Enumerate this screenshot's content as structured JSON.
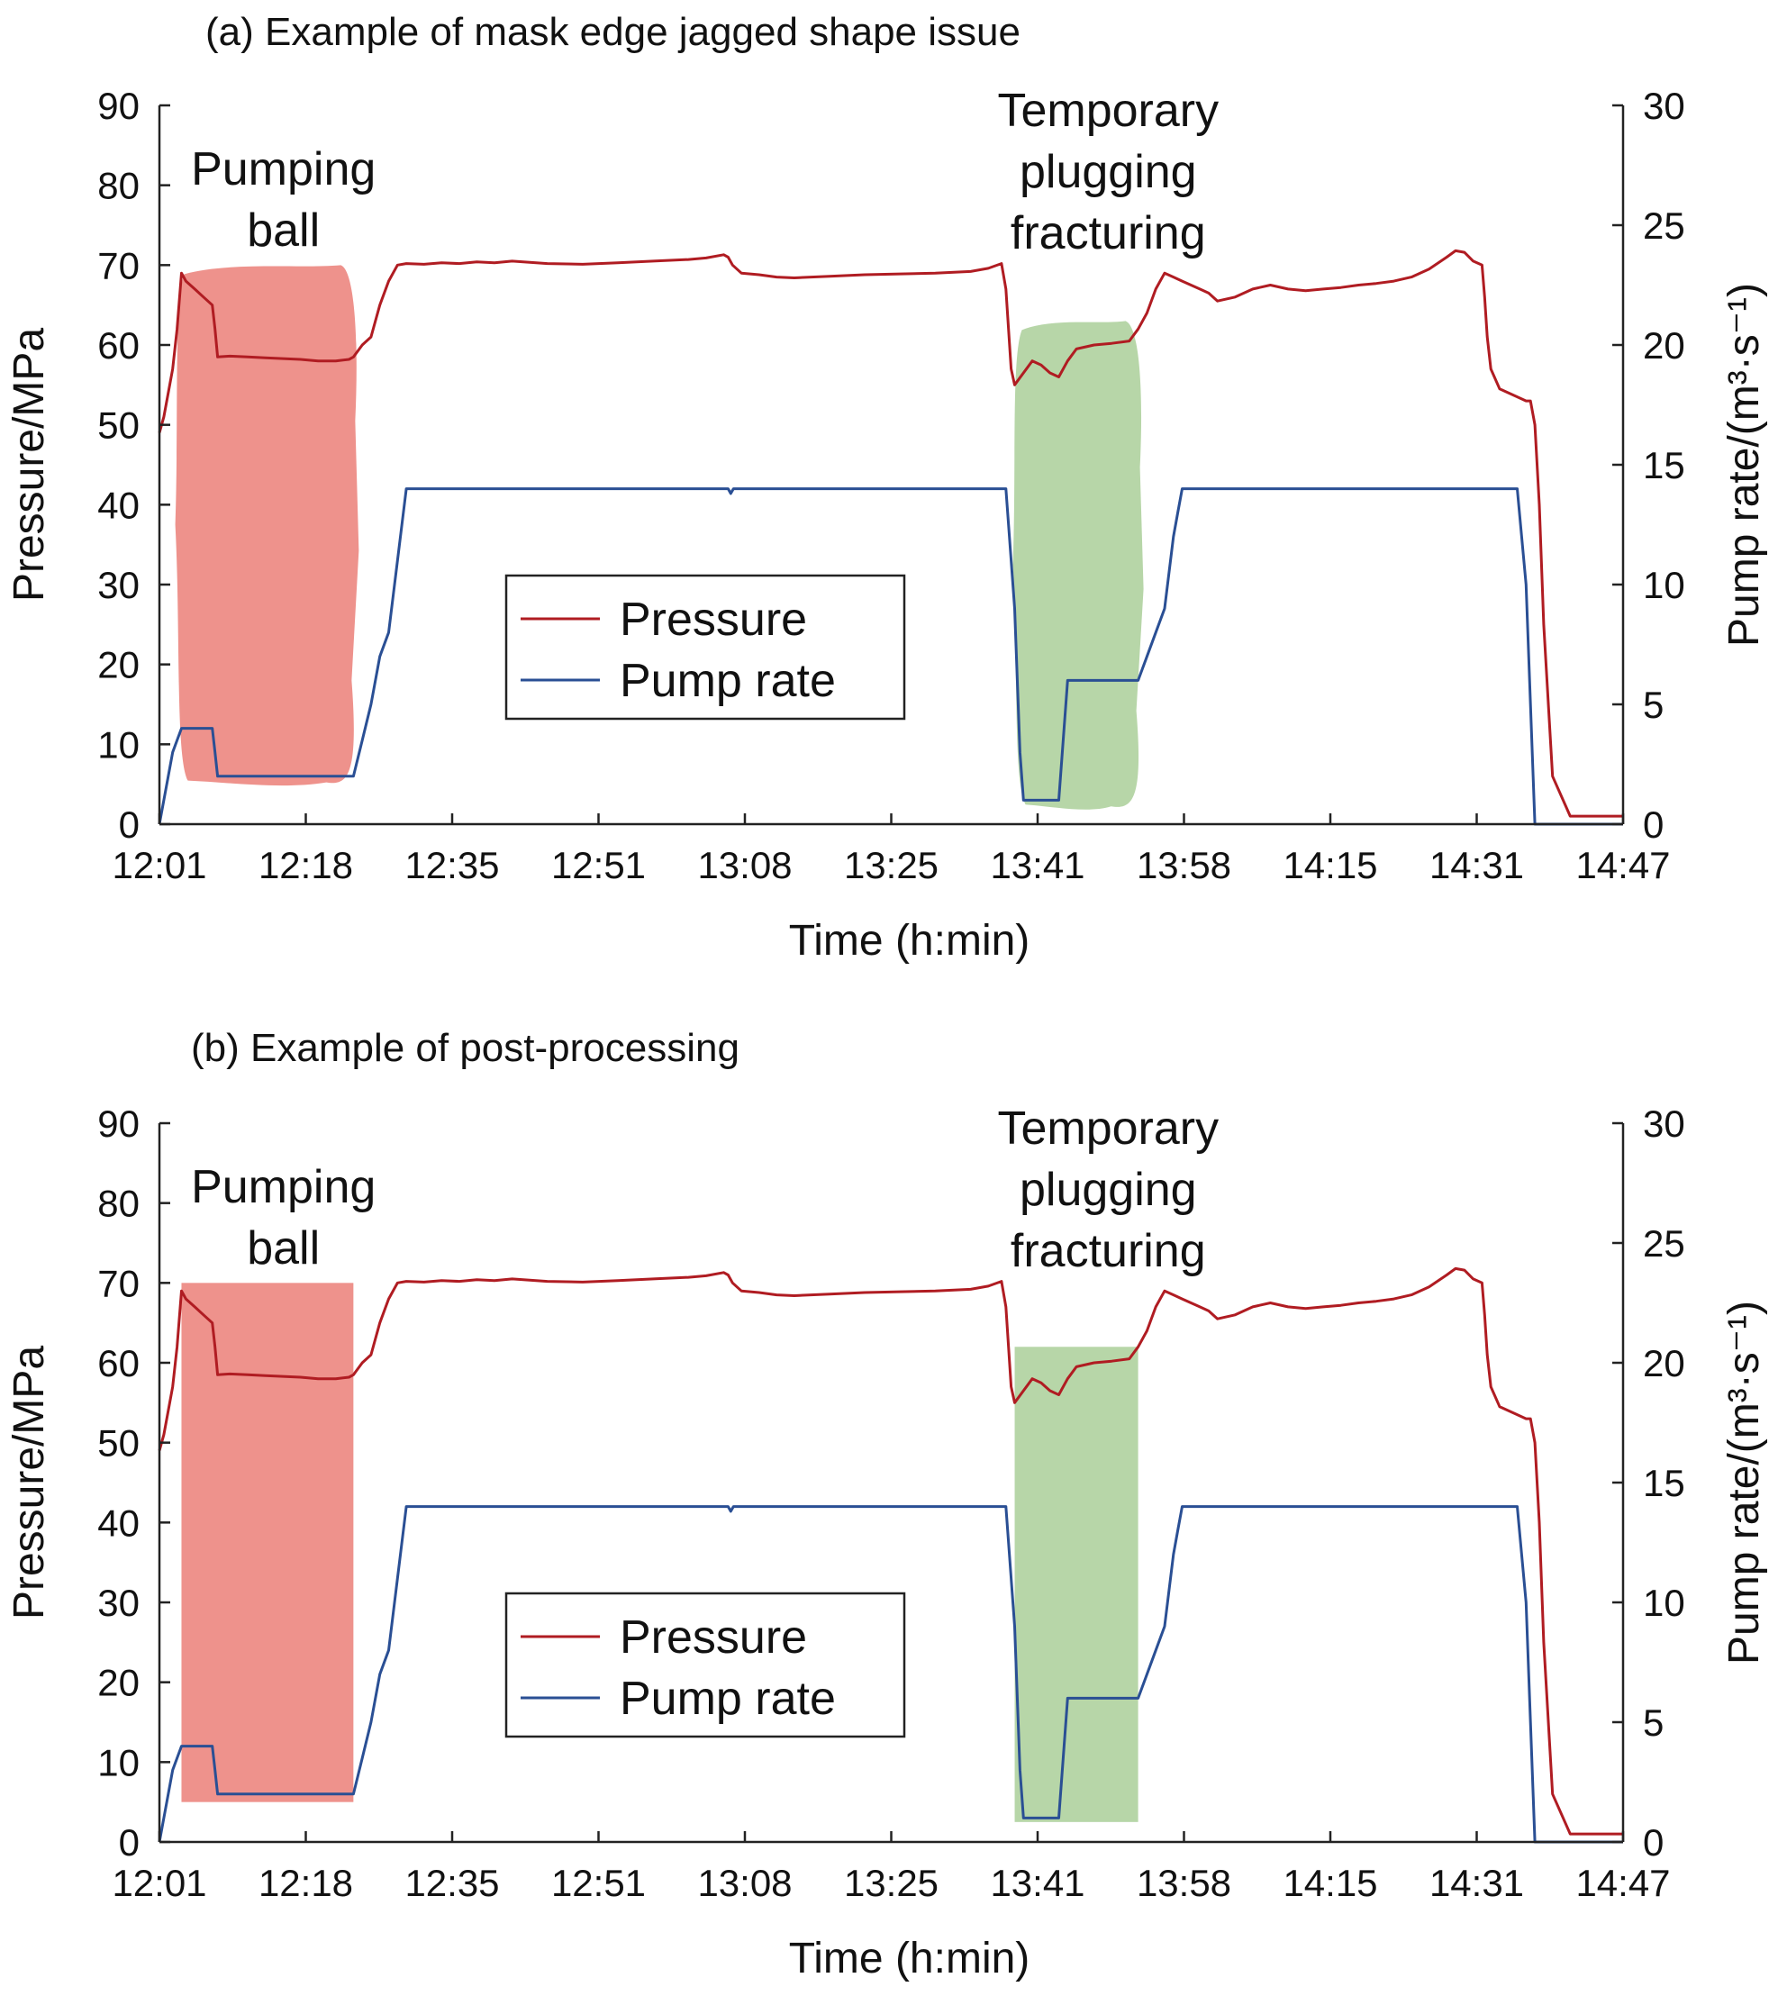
{
  "figure": {
    "panels": [
      {
        "title": "(a) Example of mask edge jagged shape issue"
      },
      {
        "title": "(b) Example of post-processing"
      }
    ]
  },
  "chart_data": [
    {
      "type": "line",
      "title": "(a) Example of mask edge jagged shape issue",
      "xlabel": "Time (h:min)",
      "ylabel": "Pressure/MPa",
      "y2label": "Pump rate/(m³·s⁻¹)",
      "x_ticks": [
        "12:01",
        "12:18",
        "12:35",
        "12:51",
        "13:08",
        "13:25",
        "13:41",
        "13:58",
        "14:15",
        "14:31",
        "14:47"
      ],
      "xlim_minutes": [
        0,
        166
      ],
      "ylim": [
        0,
        90
      ],
      "y_ticks": [
        "0",
        "10",
        "20",
        "30",
        "40",
        "50",
        "60",
        "70",
        "80",
        "90"
      ],
      "y2lim": [
        0,
        30
      ],
      "y2_ticks": [
        "0",
        "5",
        "10",
        "15",
        "20",
        "25",
        "30"
      ],
      "grid": false,
      "legend": {
        "position": "center",
        "entries": [
          "Pressure",
          "Pump rate"
        ]
      },
      "colors": {
        "pressure": "#b01c22",
        "pump_rate": "#2a4f94",
        "pumping_ball_mask": "#ee928c",
        "plugging_mask": "#b7d6a8"
      },
      "annotations": [
        {
          "text_lines": [
            "Pumping",
            "ball"
          ],
          "x_minute": 11
        },
        {
          "text_lines": [
            "Temporary",
            "plugging",
            "fracturing"
          ],
          "x_minute": 103
        }
      ],
      "mask_style": "jagged",
      "masks": [
        {
          "name": "Pumping ball",
          "x": [
            2,
            22
          ],
          "y": [
            5,
            70
          ]
        },
        {
          "name": "Temporary plugging fracturing",
          "x": [
            97,
            111
          ],
          "y": [
            2,
            63
          ]
        }
      ],
      "series": [
        {
          "name": "Pressure",
          "axis": "left",
          "x": [
            0,
            0.5,
            1.5,
            2,
            2.5,
            3,
            4,
            5,
            6,
            6.3,
            6.6,
            8,
            10,
            12,
            14,
            16,
            18,
            20,
            21.5,
            22,
            23,
            24,
            24.5,
            25,
            26,
            27,
            28,
            30,
            32,
            34,
            36,
            38,
            40,
            44,
            48,
            52,
            56,
            60,
            62,
            64,
            64.5,
            65,
            66,
            68,
            70,
            72,
            76,
            80,
            84,
            88,
            92,
            94,
            95.5,
            96,
            96.3,
            96.6,
            97,
            98,
            99,
            100,
            101,
            102,
            103,
            104,
            106,
            108,
            110,
            111,
            112,
            113,
            114,
            115,
            116,
            118,
            119,
            120,
            122,
            124,
            126,
            128,
            130,
            132,
            134,
            136,
            138,
            140,
            142,
            144,
            146,
            147,
            148,
            149,
            150,
            150.3,
            150.6,
            151,
            152,
            154,
            155,
            155.5,
            156,
            156.5,
            157,
            158,
            160,
            162,
            164,
            166
          ],
          "values": [
            49,
            51,
            57,
            62,
            69,
            68,
            67,
            66,
            65,
            62,
            58.5,
            58.6,
            58.5,
            58.4,
            58.3,
            58.2,
            58.0,
            58.0,
            58.2,
            58.5,
            60,
            61,
            63,
            65,
            68,
            70,
            70.2,
            70.1,
            70.3,
            70.2,
            70.4,
            70.3,
            70.5,
            70.2,
            70.1,
            70.3,
            70.5,
            70.7,
            70.9,
            71.3,
            71,
            70,
            69,
            68.8,
            68.5,
            68.4,
            68.6,
            68.8,
            68.9,
            69.0,
            69.2,
            69.6,
            70.2,
            67,
            62,
            57,
            55,
            56.5,
            58,
            57.5,
            56.5,
            56,
            58,
            59.5,
            60,
            60.2,
            60.5,
            62,
            64,
            67,
            69,
            68.5,
            68,
            67,
            66.5,
            65.5,
            66,
            67,
            67.5,
            67,
            66.8,
            67,
            67.2,
            67.5,
            67.7,
            68,
            68.5,
            69.5,
            71,
            71.8,
            71.6,
            70.5,
            70,
            66,
            61,
            57,
            54.5,
            53.5,
            53,
            53,
            50,
            40,
            25,
            6,
            1,
            1,
            1,
            1
          ]
        },
        {
          "name": "Pump rate",
          "axis": "right",
          "x": [
            0,
            0.5,
            1,
            1.5,
            2,
            2.5,
            3,
            4,
            5,
            6,
            6.3,
            6.6,
            8,
            12,
            16,
            20,
            22,
            23,
            24,
            25,
            26,
            27,
            28,
            64.5,
            64.8,
            65.1,
            96,
            97,
            97.6,
            98,
            100,
            102,
            103,
            105,
            108,
            111,
            112,
            113,
            114,
            115,
            115.5,
            116,
            154,
            155,
            155.5,
            156,
            158,
            162,
            166
          ],
          "values": [
            0,
            1,
            2,
            3,
            3.5,
            4,
            4,
            4,
            4,
            4,
            3,
            2,
            2,
            2,
            2,
            2,
            2,
            3.5,
            5,
            7,
            8,
            11,
            14,
            14,
            13.8,
            14,
            14,
            9,
            3,
            1,
            1,
            1,
            6,
            6,
            6,
            6,
            7,
            8,
            9,
            12,
            13,
            14,
            14,
            10,
            5,
            0,
            0,
            0,
            0
          ]
        }
      ]
    },
    {
      "type": "line",
      "title": "(b) Example of post-processing",
      "xlabel": "Time (h:min)",
      "ylabel": "Pressure/MPa",
      "y2label": "Pump rate/(m³·s⁻¹)",
      "x_ticks": [
        "12:01",
        "12:18",
        "12:35",
        "12:51",
        "13:08",
        "13:25",
        "13:41",
        "13:58",
        "14:15",
        "14:31",
        "14:47"
      ],
      "xlim_minutes": [
        0,
        166
      ],
      "ylim": [
        0,
        90
      ],
      "y_ticks": [
        "0",
        "10",
        "20",
        "30",
        "40",
        "50",
        "60",
        "70",
        "80",
        "90"
      ],
      "y2lim": [
        0,
        30
      ],
      "y2_ticks": [
        "0",
        "5",
        "10",
        "15",
        "20",
        "25",
        "30"
      ],
      "grid": false,
      "legend": {
        "position": "center",
        "entries": [
          "Pressure",
          "Pump rate"
        ]
      },
      "colors": {
        "pressure": "#b01c22",
        "pump_rate": "#2a4f94",
        "pumping_ball_mask": "#ee928c",
        "plugging_mask": "#b7d6a8"
      },
      "annotations": [
        {
          "text_lines": [
            "Pumping",
            "ball"
          ],
          "x_minute": 11
        },
        {
          "text_lines": [
            "Temporary",
            "plugging",
            "fracturing"
          ],
          "x_minute": 103
        }
      ],
      "mask_style": "rectangle",
      "masks": [
        {
          "name": "Pumping ball",
          "x": [
            2.5,
            22
          ],
          "y": [
            5,
            70
          ]
        },
        {
          "name": "Temporary plugging fracturing",
          "x": [
            97,
            111
          ],
          "y": [
            2.5,
            62
          ]
        }
      ],
      "series": [
        {
          "name": "Pressure",
          "axis": "left",
          "x": [
            0,
            0.5,
            1.5,
            2,
            2.5,
            3,
            4,
            5,
            6,
            6.3,
            6.6,
            8,
            10,
            12,
            14,
            16,
            18,
            20,
            21.5,
            22,
            23,
            24,
            24.5,
            25,
            26,
            27,
            28,
            30,
            32,
            34,
            36,
            38,
            40,
            44,
            48,
            52,
            56,
            60,
            62,
            64,
            64.5,
            65,
            66,
            68,
            70,
            72,
            76,
            80,
            84,
            88,
            92,
            94,
            95.5,
            96,
            96.3,
            96.6,
            97,
            98,
            99,
            100,
            101,
            102,
            103,
            104,
            106,
            108,
            110,
            111,
            112,
            113,
            114,
            115,
            116,
            118,
            119,
            120,
            122,
            124,
            126,
            128,
            130,
            132,
            134,
            136,
            138,
            140,
            142,
            144,
            146,
            147,
            148,
            149,
            150,
            150.3,
            150.6,
            151,
            152,
            154,
            155,
            155.5,
            156,
            156.5,
            157,
            158,
            160,
            162,
            164,
            166
          ],
          "values": [
            49,
            51,
            57,
            62,
            69,
            68,
            67,
            66,
            65,
            62,
            58.5,
            58.6,
            58.5,
            58.4,
            58.3,
            58.2,
            58.0,
            58.0,
            58.2,
            58.5,
            60,
            61,
            63,
            65,
            68,
            70,
            70.2,
            70.1,
            70.3,
            70.2,
            70.4,
            70.3,
            70.5,
            70.2,
            70.1,
            70.3,
            70.5,
            70.7,
            70.9,
            71.3,
            71,
            70,
            69,
            68.8,
            68.5,
            68.4,
            68.6,
            68.8,
            68.9,
            69.0,
            69.2,
            69.6,
            70.2,
            67,
            62,
            57,
            55,
            56.5,
            58,
            57.5,
            56.5,
            56,
            58,
            59.5,
            60,
            60.2,
            60.5,
            62,
            64,
            67,
            69,
            68.5,
            68,
            67,
            66.5,
            65.5,
            66,
            67,
            67.5,
            67,
            66.8,
            67,
            67.2,
            67.5,
            67.7,
            68,
            68.5,
            69.5,
            71,
            71.8,
            71.6,
            70.5,
            70,
            66,
            61,
            57,
            54.5,
            53.5,
            53,
            53,
            50,
            40,
            25,
            6,
            1,
            1,
            1,
            1
          ]
        },
        {
          "name": "Pump rate",
          "axis": "right",
          "x": [
            0,
            0.5,
            1,
            1.5,
            2,
            2.5,
            3,
            4,
            5,
            6,
            6.3,
            6.6,
            8,
            12,
            16,
            20,
            22,
            23,
            24,
            25,
            26,
            27,
            28,
            64.5,
            64.8,
            65.1,
            96,
            97,
            97.6,
            98,
            100,
            102,
            103,
            105,
            108,
            111,
            112,
            113,
            114,
            115,
            115.5,
            116,
            154,
            155,
            155.5,
            156,
            158,
            162,
            166
          ],
          "values": [
            0,
            1,
            2,
            3,
            3.5,
            4,
            4,
            4,
            4,
            4,
            3,
            2,
            2,
            2,
            2,
            2,
            2,
            3.5,
            5,
            7,
            8,
            11,
            14,
            14,
            13.8,
            14,
            14,
            9,
            3,
            1,
            1,
            1,
            6,
            6,
            6,
            6,
            7,
            8,
            9,
            12,
            13,
            14,
            14,
            10,
            5,
            0,
            0,
            0,
            0
          ]
        }
      ]
    }
  ]
}
